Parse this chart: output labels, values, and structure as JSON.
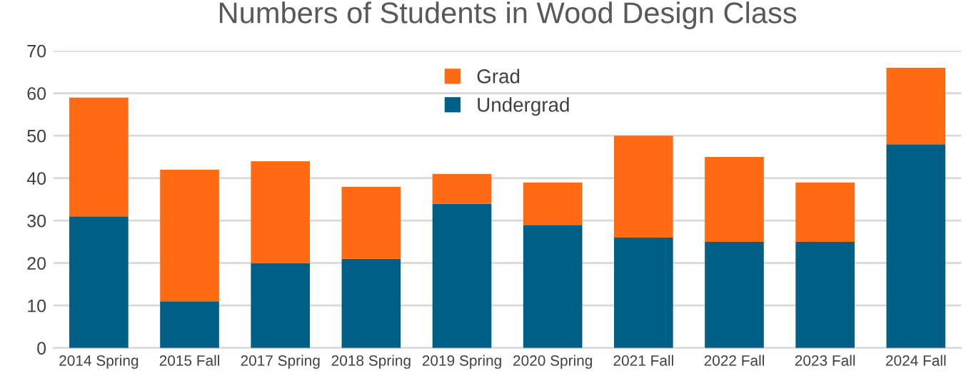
{
  "chart_data": {
    "type": "bar",
    "title": "Numbers of Students in Wood Design Class",
    "categories": [
      "2014 Spring",
      "2015 Fall",
      "2017 Spring",
      "2018 Spring",
      "2019 Spring",
      "2020 Spring",
      "2021 Fall",
      "2022 Fall",
      "2023 Fall",
      "2024 Fall"
    ],
    "series": [
      {
        "name": "Undergrad",
        "color": "#005f86",
        "values": [
          31,
          11,
          20,
          21,
          34,
          29,
          26,
          25,
          25,
          48
        ]
      },
      {
        "name": "Grad",
        "color": "#ff6a13",
        "values": [
          28,
          31,
          24,
          17,
          7,
          10,
          24,
          20,
          14,
          18
        ]
      }
    ],
    "stacked": true,
    "ylim": [
      0,
      70
    ],
    "yticks": [
      0,
      10,
      20,
      30,
      40,
      50,
      60,
      70
    ],
    "grid": "y",
    "legend": "top"
  }
}
